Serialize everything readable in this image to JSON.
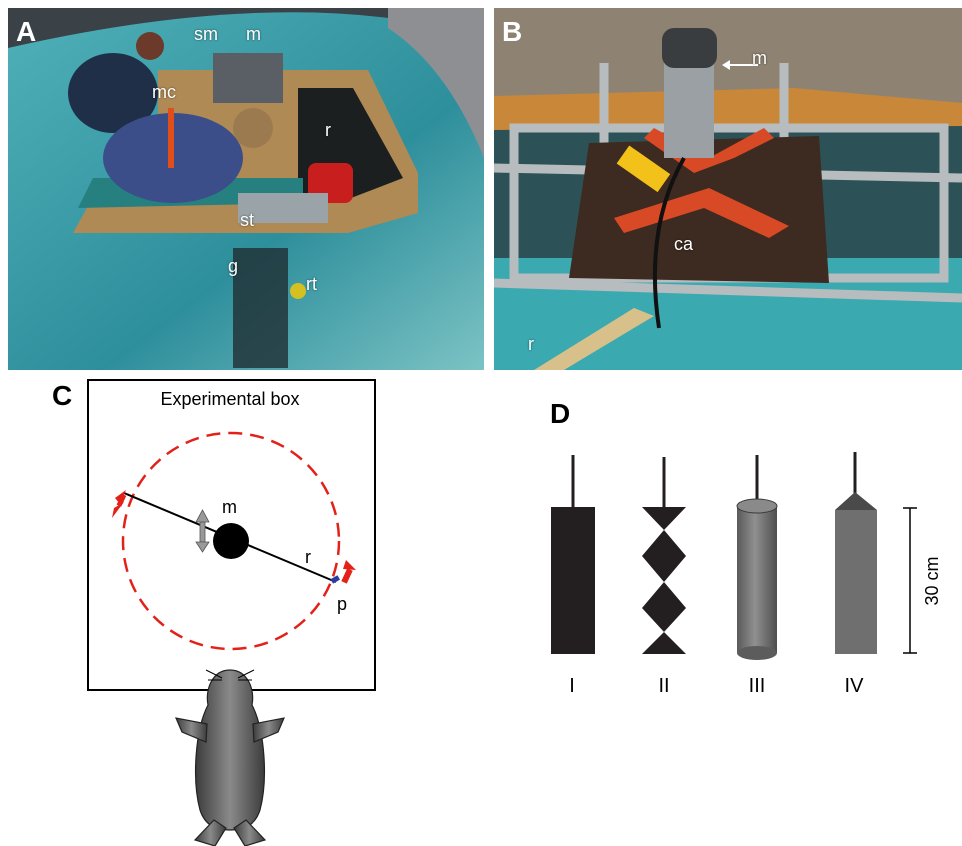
{
  "panel_a": {
    "letter": "A",
    "labels": {
      "sm": "sm",
      "m": "m",
      "mc": "mc",
      "r": "r",
      "st": "st",
      "g": "g",
      "rt": "rt"
    }
  },
  "panel_b": {
    "letter": "B",
    "labels": {
      "m": "m",
      "ca": "ca",
      "r": "r"
    }
  },
  "panel_c": {
    "letter": "C",
    "box_title": "Experimental box",
    "labels": {
      "m": "m",
      "r": "r",
      "p": "p"
    }
  },
  "panel_d": {
    "letter": "D",
    "objects": [
      {
        "numeral": "I",
        "shape": "rectangle",
        "color": "#231f20"
      },
      {
        "numeral": "II",
        "shape": "zigzag",
        "color": "#231f20"
      },
      {
        "numeral": "III",
        "shape": "cylinder",
        "color": "#6f6f6f"
      },
      {
        "numeral": "IV",
        "shape": "cone-top",
        "color": "#6f6f6f"
      }
    ],
    "scale_label": "30 cm"
  },
  "colors": {
    "circle": "#e32119",
    "arrow": "#e32119",
    "dark": "#231f20",
    "grey": "#6f6f6f"
  }
}
